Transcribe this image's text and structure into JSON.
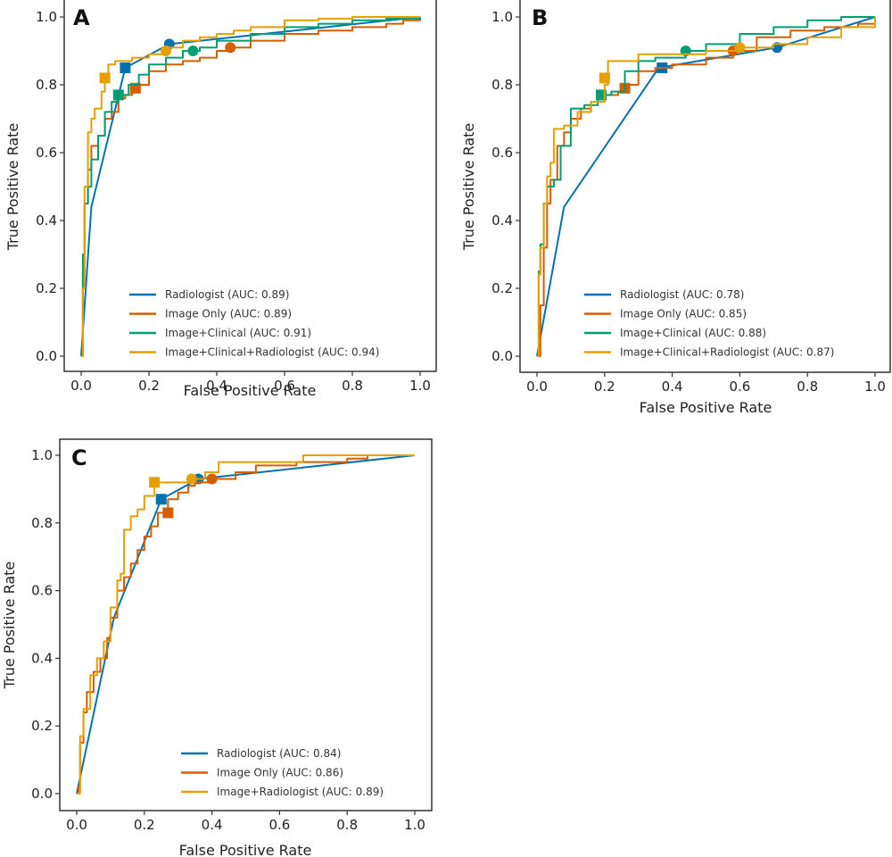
{
  "chart_data": [
    {
      "type": "line",
      "panel": "A",
      "title": "",
      "xlabel": "False Positive Rate",
      "ylabel": "True Positive Rate",
      "xlim": [
        0,
        1
      ],
      "ylim": [
        0,
        1
      ],
      "xticks": [
        "0.0",
        "0.2",
        "0.4",
        "0.6",
        "0.8",
        "1.0"
      ],
      "yticks": [
        "0.0",
        "0.2",
        "0.4",
        "0.6",
        "0.8",
        "1.0"
      ],
      "grid": false,
      "legend_position": "lower-right",
      "series": [
        {
          "name": "Radiologist (AUC: 0.89)",
          "color": "#0072B2",
          "x": [
            0,
            0.03,
            0.13,
            0.26,
            1.0
          ],
          "y": [
            0,
            0.44,
            0.85,
            0.92,
            1.0
          ],
          "markers": [
            {
              "shape": "square",
              "x": 0.13,
              "y": 0.85
            },
            {
              "shape": "circle",
              "x": 0.26,
              "y": 0.92
            }
          ]
        },
        {
          "name": "Image Only (AUC: 0.89)",
          "color": "#D55E00",
          "x": [
            0,
            0.005,
            0.01,
            0.02,
            0.03,
            0.05,
            0.07,
            0.09,
            0.11,
            0.13,
            0.15,
            0.17,
            0.2,
            0.25,
            0.3,
            0.35,
            0.4,
            0.45,
            0.5,
            0.6,
            0.7,
            0.8,
            0.9,
            0.95,
            1.0
          ],
          "y": [
            0,
            0.25,
            0.45,
            0.55,
            0.62,
            0.65,
            0.7,
            0.72,
            0.76,
            0.77,
            0.79,
            0.8,
            0.84,
            0.86,
            0.87,
            0.88,
            0.9,
            0.91,
            0.93,
            0.95,
            0.96,
            0.97,
            0.98,
            0.99,
            1.0
          ],
          "markers": [
            {
              "shape": "square",
              "x": 0.16,
              "y": 0.79
            },
            {
              "shape": "circle",
              "x": 0.44,
              "y": 0.91
            }
          ]
        },
        {
          "name": "Image+Clinical (AUC: 0.91)",
          "color": "#009E73",
          "x": [
            0,
            0.005,
            0.01,
            0.02,
            0.03,
            0.05,
            0.07,
            0.09,
            0.11,
            0.14,
            0.17,
            0.2,
            0.25,
            0.3,
            0.35,
            0.4,
            0.5,
            0.6,
            0.7,
            0.8,
            0.9,
            1.0
          ],
          "y": [
            0,
            0.3,
            0.45,
            0.5,
            0.58,
            0.65,
            0.72,
            0.75,
            0.77,
            0.8,
            0.83,
            0.86,
            0.88,
            0.9,
            0.91,
            0.93,
            0.95,
            0.97,
            0.98,
            0.99,
            0.995,
            1.0
          ],
          "markers": [
            {
              "shape": "square",
              "x": 0.11,
              "y": 0.77
            },
            {
              "shape": "circle",
              "x": 0.33,
              "y": 0.9
            }
          ]
        },
        {
          "name": "Image+Clinical+Radiologist (AUC: 0.94)",
          "color": "#E69F00",
          "x": [
            0,
            0.005,
            0.01,
            0.02,
            0.03,
            0.04,
            0.06,
            0.07,
            0.08,
            0.1,
            0.15,
            0.2,
            0.25,
            0.3,
            0.35,
            0.4,
            0.45,
            0.5,
            0.6,
            0.7,
            0.8,
            0.9,
            1.0
          ],
          "y": [
            0,
            0.2,
            0.5,
            0.66,
            0.7,
            0.73,
            0.78,
            0.82,
            0.86,
            0.87,
            0.88,
            0.89,
            0.91,
            0.93,
            0.94,
            0.95,
            0.96,
            0.97,
            0.99,
            0.995,
            1.0,
            1.0,
            1.0
          ],
          "markers": [
            {
              "shape": "square",
              "x": 0.07,
              "y": 0.82
            },
            {
              "shape": "circle",
              "x": 0.25,
              "y": 0.9
            }
          ]
        }
      ]
    },
    {
      "type": "line",
      "panel": "B",
      "title": "",
      "xlabel": "False Positive Rate",
      "ylabel": "True Positive Rate",
      "xlim": [
        0,
        1
      ],
      "ylim": [
        0,
        1
      ],
      "xticks": [
        "0.0",
        "0.2",
        "0.4",
        "0.6",
        "0.8",
        "1.0"
      ],
      "yticks": [
        "0.0",
        "0.2",
        "0.4",
        "0.6",
        "0.8",
        "1.0"
      ],
      "grid": false,
      "legend_position": "lower-right",
      "series": [
        {
          "name": "Radiologist (AUC: 0.78)",
          "color": "#0072B2",
          "x": [
            0,
            0.08,
            0.36,
            0.71,
            1.0
          ],
          "y": [
            0,
            0.44,
            0.85,
            0.91,
            1.0
          ],
          "markers": [
            {
              "shape": "square",
              "x": 0.37,
              "y": 0.85
            },
            {
              "shape": "circle",
              "x": 0.71,
              "y": 0.91
            }
          ]
        },
        {
          "name": "Image Only (AUC: 0.85)",
          "color": "#D55E00",
          "x": [
            0,
            0.01,
            0.02,
            0.03,
            0.04,
            0.06,
            0.08,
            0.1,
            0.13,
            0.16,
            0.2,
            0.24,
            0.27,
            0.3,
            0.35,
            0.4,
            0.5,
            0.58,
            0.65,
            0.75,
            0.85,
            0.95,
            1.0
          ],
          "y": [
            0,
            0.15,
            0.32,
            0.45,
            0.52,
            0.62,
            0.66,
            0.7,
            0.73,
            0.75,
            0.77,
            0.78,
            0.8,
            0.84,
            0.85,
            0.86,
            0.88,
            0.9,
            0.94,
            0.96,
            0.97,
            0.98,
            1.0
          ],
          "markers": [
            {
              "shape": "square",
              "x": 0.26,
              "y": 0.79
            },
            {
              "shape": "circle",
              "x": 0.58,
              "y": 0.9
            }
          ]
        },
        {
          "name": "Image+Clinical (AUC: 0.88)",
          "color": "#009E73",
          "x": [
            0,
            0.005,
            0.01,
            0.02,
            0.03,
            0.05,
            0.07,
            0.1,
            0.14,
            0.18,
            0.22,
            0.26,
            0.3,
            0.35,
            0.44,
            0.5,
            0.6,
            0.7,
            0.8,
            0.9,
            1.0
          ],
          "y": [
            0,
            0.25,
            0.33,
            0.45,
            0.5,
            0.52,
            0.62,
            0.73,
            0.74,
            0.77,
            0.78,
            0.84,
            0.87,
            0.88,
            0.9,
            0.92,
            0.95,
            0.97,
            0.99,
            1.0,
            1.0
          ],
          "markers": [
            {
              "shape": "square",
              "x": 0.19,
              "y": 0.77
            },
            {
              "shape": "circle",
              "x": 0.44,
              "y": 0.9
            }
          ]
        },
        {
          "name": "Image+Clinical+Radiologist (AUC: 0.87)",
          "color": "#E69F00",
          "x": [
            0,
            0.005,
            0.01,
            0.02,
            0.03,
            0.04,
            0.05,
            0.08,
            0.12,
            0.16,
            0.2,
            0.21,
            0.3,
            0.4,
            0.5,
            0.6,
            0.7,
            0.8,
            0.9,
            1.0
          ],
          "y": [
            0,
            0.24,
            0.32,
            0.45,
            0.53,
            0.57,
            0.67,
            0.68,
            0.72,
            0.75,
            0.8,
            0.87,
            0.89,
            0.89,
            0.9,
            0.91,
            0.92,
            0.94,
            0.97,
            1.0
          ],
          "markers": [
            {
              "shape": "square",
              "x": 0.2,
              "y": 0.82
            },
            {
              "shape": "circle",
              "x": 0.6,
              "y": 0.91
            }
          ]
        }
      ]
    },
    {
      "type": "line",
      "panel": "C",
      "title": "",
      "xlabel": "False Positive Rate",
      "ylabel": "True Positive Rate",
      "xlim": [
        0,
        1
      ],
      "ylim": [
        0,
        1
      ],
      "xticks": [
        "0.0",
        "0.2",
        "0.4",
        "0.6",
        "0.8",
        "1.0"
      ],
      "yticks": [
        "0.0",
        "0.2",
        "0.4",
        "0.6",
        "0.8",
        "1.0"
      ],
      "grid": false,
      "legend_position": "lower-right",
      "series": [
        {
          "name": "Radiologist (AUC: 0.84)",
          "color": "#0072B2",
          "x": [
            0,
            0.11,
            0.25,
            0.36,
            1.0
          ],
          "y": [
            0,
            0.52,
            0.87,
            0.93,
            1.0
          ],
          "markers": [
            {
              "shape": "square",
              "x": 0.25,
              "y": 0.87
            },
            {
              "shape": "circle",
              "x": 0.36,
              "y": 0.93
            }
          ]
        },
        {
          "name": "Image Only (AUC: 0.86)",
          "color": "#D55E00",
          "x": [
            0,
            0.005,
            0.01,
            0.02,
            0.03,
            0.05,
            0.07,
            0.09,
            0.1,
            0.12,
            0.14,
            0.16,
            0.18,
            0.2,
            0.22,
            0.24,
            0.27,
            0.3,
            0.33,
            0.35,
            0.4,
            0.47,
            0.53,
            0.65,
            0.8,
            0.86,
            1.0
          ],
          "y": [
            0,
            0.02,
            0.15,
            0.24,
            0.3,
            0.36,
            0.4,
            0.46,
            0.52,
            0.6,
            0.64,
            0.68,
            0.72,
            0.76,
            0.79,
            0.83,
            0.87,
            0.89,
            0.91,
            0.92,
            0.93,
            0.95,
            0.97,
            0.98,
            0.99,
            1.0,
            1.0
          ],
          "markers": [
            {
              "shape": "square",
              "x": 0.27,
              "y": 0.83
            },
            {
              "shape": "circle",
              "x": 0.4,
              "y": 0.93
            }
          ]
        },
        {
          "name": "Image+Radiologist (AUC: 0.89)",
          "color": "#E69F00",
          "x": [
            0,
            0.01,
            0.02,
            0.04,
            0.06,
            0.08,
            0.1,
            0.12,
            0.13,
            0.14,
            0.16,
            0.18,
            0.2,
            0.23,
            0.34,
            0.38,
            0.42,
            0.67,
            1.0
          ],
          "y": [
            0,
            0.17,
            0.25,
            0.35,
            0.4,
            0.45,
            0.55,
            0.63,
            0.65,
            0.78,
            0.82,
            0.84,
            0.88,
            0.92,
            0.93,
            0.95,
            0.98,
            1.0,
            1.0
          ],
          "markers": [
            {
              "shape": "square",
              "x": 0.23,
              "y": 0.92
            },
            {
              "shape": "circle",
              "x": 0.34,
              "y": 0.93
            }
          ]
        }
      ]
    }
  ]
}
